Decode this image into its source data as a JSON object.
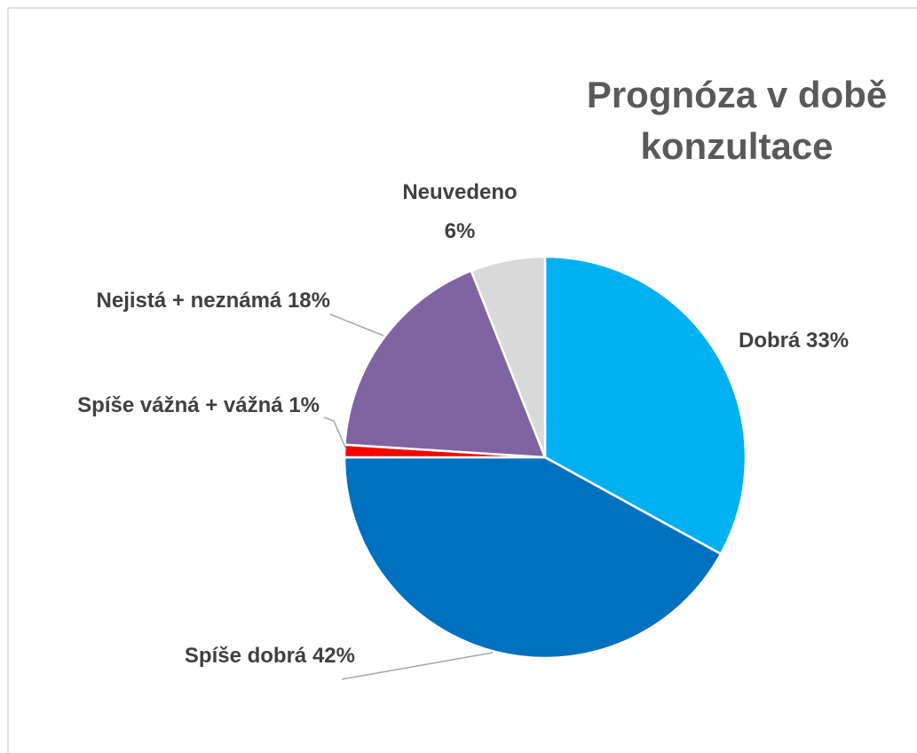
{
  "chart_data": {
    "type": "pie",
    "title": "Prognóza v době konzultace",
    "categories": [
      "Dobrá",
      "Spíše dobrá",
      "Spíše vážná + vážná",
      "Nejistá + neznámá",
      "Neuvedeno"
    ],
    "values": [
      33,
      42,
      1,
      18,
      6
    ],
    "value_labels": [
      "33%",
      "42%",
      "1%",
      "18%",
      "6%"
    ],
    "colors": [
      "#00b0f0",
      "#0070c0",
      "#ff0000",
      "#8064a2",
      "#d9d9d9"
    ]
  }
}
